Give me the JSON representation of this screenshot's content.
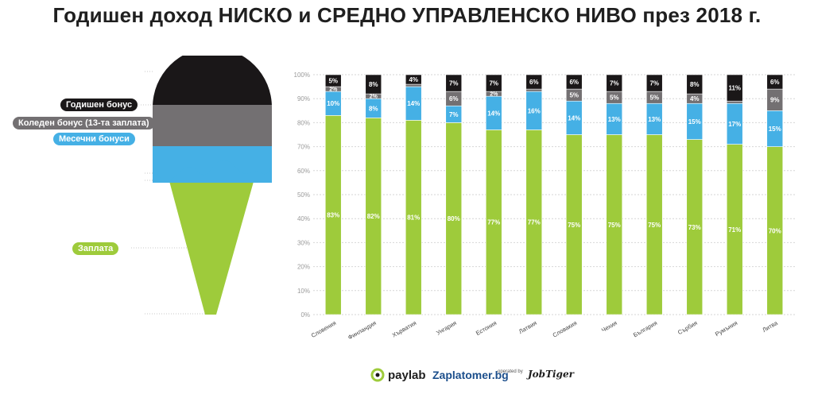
{
  "title": "Годишен доход НИСКО и СРЕДНО УПРАВЛЕНСКО НИВО през 2018 г.",
  "legend": {
    "annual": "Годишен бонус",
    "christmas": "Коледен бонус (13-та заплата)",
    "monthly": "Месечни бонуси",
    "salary": "Заплата"
  },
  "colors": {
    "annual": "#1a1718",
    "christmas": "#737072",
    "monthly": "#45b0e5",
    "salary": "#9ecb3b"
  },
  "footer": {
    "paylab": "paylab",
    "zaplatomer": "Zaplatomer.bg",
    "operated_by": "operated by",
    "jobtiger": "JobTiger"
  },
  "chart_data": {
    "type": "bar",
    "stacked": true,
    "categories": [
      "Словения",
      "Финландия",
      "Хърватия",
      "Унгария",
      "Естония",
      "Латвия",
      "Словакия",
      "Чехия",
      "България",
      "Сърбия",
      "Румъния",
      "Литва"
    ],
    "series": [
      {
        "name": "Заплата",
        "key": "salary",
        "values": [
          83,
          82,
          81,
          80,
          77,
          77,
          75,
          75,
          75,
          73,
          71,
          70
        ],
        "labels": [
          "83%",
          "82%",
          "81%",
          "80%",
          "77%",
          "77%",
          "75%",
          "75%",
          "75%",
          "73%",
          "71%",
          "70%"
        ]
      },
      {
        "name": "Месечни бонуси",
        "key": "monthly",
        "values": [
          10,
          8,
          14,
          7,
          14,
          16,
          14,
          13,
          13,
          15,
          17,
          15
        ],
        "labels": [
          "10%",
          "8%",
          "14%",
          "7%",
          "14%",
          "16%",
          "14%",
          "13%",
          "13%",
          "15%",
          "17%",
          "15%"
        ]
      },
      {
        "name": "Коледен бонус (13-та заплата)",
        "key": "christmas",
        "values": [
          2,
          2,
          1,
          6,
          2,
          1,
          5,
          5,
          5,
          4,
          1,
          9
        ],
        "labels": [
          "2%",
          "2%",
          "",
          "6%",
          "2%",
          "",
          "5%",
          "5%",
          "5%",
          "4%",
          "",
          "9%"
        ]
      },
      {
        "name": "Годишен бонус",
        "key": "annual",
        "values": [
          5,
          8,
          4,
          7,
          7,
          6,
          6,
          7,
          7,
          8,
          11,
          6
        ],
        "labels": [
          "5%",
          "8%",
          "4%",
          "7%",
          "7%",
          "6%",
          "6%",
          "7%",
          "7%",
          "8%",
          "11%",
          "6%"
        ]
      }
    ],
    "yticks": [
      "0%",
      "10%",
      "20%",
      "30%",
      "40%",
      "50%",
      "60%",
      "70%",
      "80%",
      "90%",
      "100%"
    ],
    "ylim": [
      0,
      100
    ],
    "grid": true,
    "legend_position": "left"
  }
}
